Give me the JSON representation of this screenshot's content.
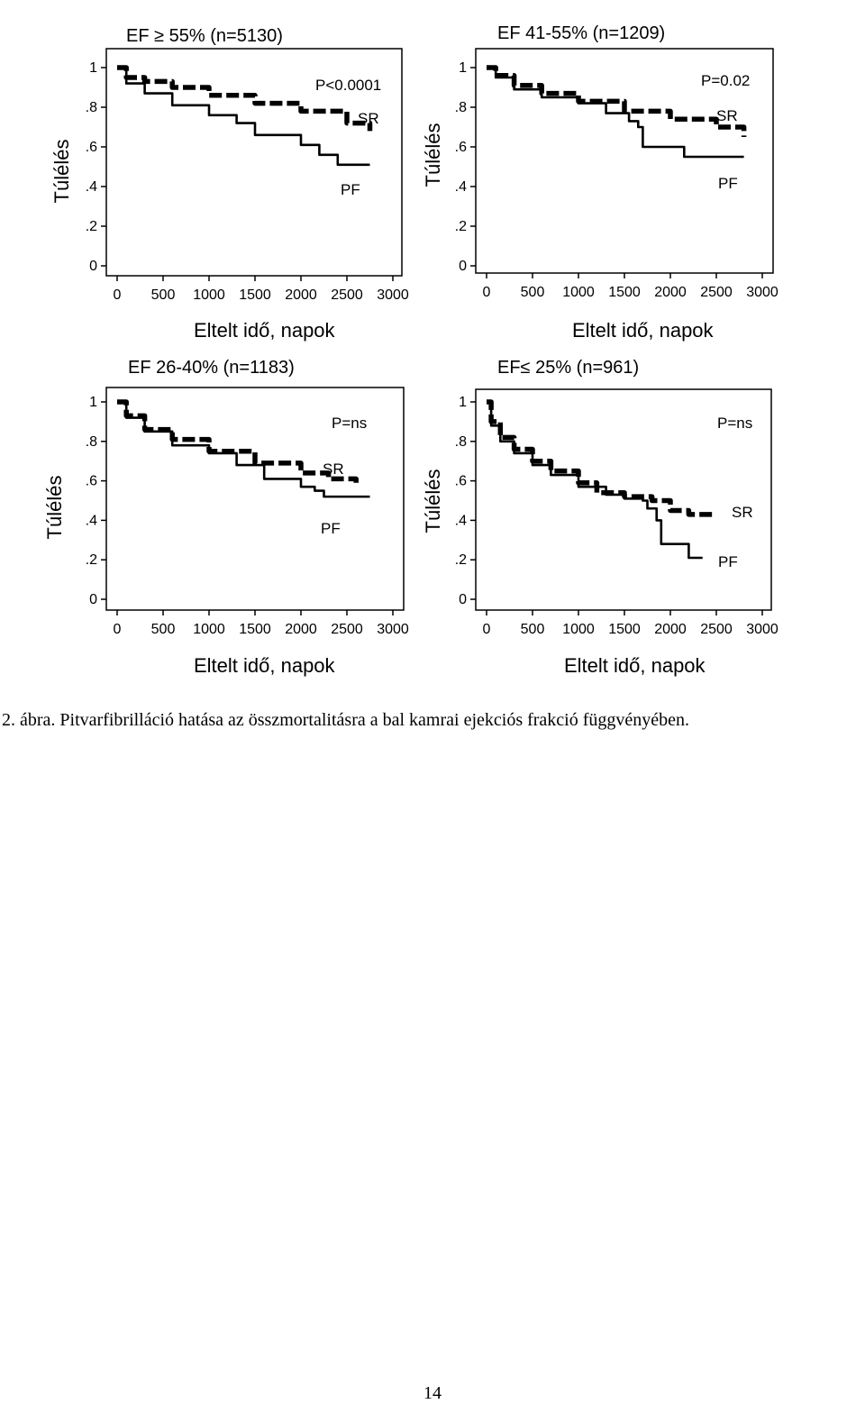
{
  "figure": {
    "caption": "2. ábra. Pitvarfibrilláció hatása az összmortalitásra a bal kamrai ejekciós frakció függvényében.",
    "page_number": "14"
  },
  "chart_data": [
    {
      "type": "line",
      "title": "EF ≥ 55% (n=5130)",
      "xlabel": "Eltelt idő, napok",
      "ylabel": "Túlélés",
      "x_ticks": [
        "0",
        "500",
        "1000",
        "1500",
        "2000",
        "2500",
        "3000"
      ],
      "y_ticks": [
        "0",
        ".2",
        ".4",
        ".6",
        ".8",
        "1"
      ],
      "xlim": [
        0,
        3000
      ],
      "ylim": [
        0,
        1
      ],
      "p_value": "P<0.0001",
      "series": [
        {
          "name": "SR",
          "style": "dashed-thick",
          "x": [
            0,
            100,
            300,
            600,
            1000,
            1500,
            2000,
            2500,
            2750
          ],
          "y": [
            1.0,
            0.95,
            0.93,
            0.9,
            0.86,
            0.82,
            0.78,
            0.72,
            0.68
          ]
        },
        {
          "name": "PF",
          "style": "solid",
          "x": [
            0,
            100,
            300,
            600,
            1000,
            1300,
            1500,
            2000,
            2200,
            2400,
            2600,
            2750
          ],
          "y": [
            1.0,
            0.92,
            0.87,
            0.81,
            0.76,
            0.72,
            0.66,
            0.61,
            0.56,
            0.51,
            0.51,
            0.51
          ]
        }
      ]
    },
    {
      "type": "line",
      "title": "EF 41-55% (n=1209)",
      "xlabel": "Eltelt idő, napok",
      "ylabel": "Túlélés",
      "x_ticks": [
        "0",
        "500",
        "1000",
        "1500",
        "2000",
        "2500",
        "3000"
      ],
      "y_ticks": [
        "0",
        ".2",
        ".4",
        ".6",
        ".8",
        "1"
      ],
      "xlim": [
        0,
        3000
      ],
      "ylim": [
        0,
        1
      ],
      "p_value": "P=0.02",
      "series": [
        {
          "name": "SR",
          "style": "dashed-thick",
          "x": [
            0,
            100,
            300,
            600,
            1000,
            1500,
            2000,
            2500,
            2800
          ],
          "y": [
            1.0,
            0.96,
            0.91,
            0.87,
            0.83,
            0.78,
            0.74,
            0.7,
            0.65
          ]
        },
        {
          "name": "PF",
          "style": "solid",
          "x": [
            0,
            100,
            300,
            600,
            1000,
            1300,
            1550,
            1650,
            1700,
            2100,
            2150,
            2800
          ],
          "y": [
            1.0,
            0.95,
            0.89,
            0.85,
            0.82,
            0.77,
            0.73,
            0.7,
            0.6,
            0.6,
            0.55,
            0.55
          ]
        }
      ]
    },
    {
      "type": "line",
      "title": "EF 26-40% (n=1183)",
      "xlabel": "Eltelt idő, napok",
      "ylabel": "Túlélés",
      "x_ticks": [
        "0",
        "500",
        "1000",
        "1500",
        "2000",
        "2500",
        "3000"
      ],
      "y_ticks": [
        "0",
        ".2",
        ".4",
        ".6",
        ".8",
        "1"
      ],
      "xlim": [
        0,
        3000
      ],
      "ylim": [
        0,
        1
      ],
      "p_value": "P=ns",
      "series": [
        {
          "name": "SR",
          "style": "dashed-thick",
          "x": [
            0,
            100,
            300,
            600,
            1000,
            1500,
            2000,
            2300,
            2600
          ],
          "y": [
            1.0,
            0.93,
            0.86,
            0.81,
            0.75,
            0.69,
            0.64,
            0.61,
            0.59
          ]
        },
        {
          "name": "PF",
          "style": "solid",
          "x": [
            0,
            100,
            300,
            600,
            1000,
            1300,
            1600,
            2000,
            2150,
            2250,
            2750
          ],
          "y": [
            1.0,
            0.92,
            0.85,
            0.78,
            0.74,
            0.68,
            0.61,
            0.57,
            0.55,
            0.52,
            0.52
          ]
        }
      ]
    },
    {
      "type": "line",
      "title": "EF≤ 25% (n=961)",
      "xlabel": "Eltelt idő, napok",
      "ylabel": "Túlélés",
      "x_ticks": [
        "0",
        "500",
        "1000",
        "1500",
        "2000",
        "2500",
        "3000"
      ],
      "y_ticks": [
        "0",
        ".2",
        ".4",
        ".6",
        ".8",
        "1"
      ],
      "xlim": [
        0,
        3000
      ],
      "ylim": [
        0,
        1
      ],
      "p_value": "P=ns",
      "series": [
        {
          "name": "SR",
          "style": "dashed-thick",
          "x": [
            0,
            50,
            150,
            300,
            500,
            700,
            1000,
            1200,
            1500,
            1800,
            2000,
            2200,
            2500
          ],
          "y": [
            1.0,
            0.9,
            0.82,
            0.76,
            0.7,
            0.65,
            0.59,
            0.54,
            0.52,
            0.5,
            0.45,
            0.43,
            0.43
          ]
        },
        {
          "name": "PF",
          "style": "solid",
          "x": [
            0,
            50,
            150,
            300,
            500,
            700,
            1000,
            1300,
            1500,
            1700,
            1750,
            1850,
            1900,
            2150,
            2200,
            2350
          ],
          "y": [
            1.0,
            0.88,
            0.8,
            0.74,
            0.68,
            0.63,
            0.57,
            0.53,
            0.51,
            0.5,
            0.46,
            0.4,
            0.28,
            0.28,
            0.21,
            0.21
          ]
        }
      ]
    }
  ]
}
